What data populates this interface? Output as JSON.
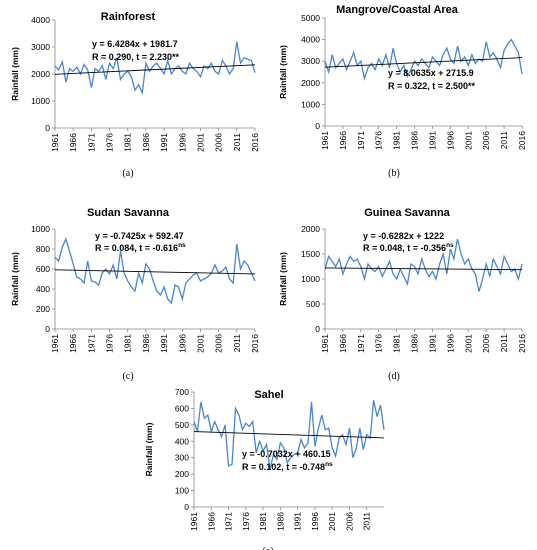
{
  "chart_data": [
    {
      "id": "a",
      "type": "line",
      "title": "Rainforest",
      "panel_label": "(a)",
      "ylabel": "Rainfall (mm)",
      "xlabel": "",
      "ylim": [
        0,
        4000
      ],
      "yticks": [
        "0",
        "1000",
        "2000",
        "3000",
        "4000"
      ],
      "xlim": [
        1961,
        2016
      ],
      "xticks": [
        "1961",
        "1966",
        "1971",
        "1976",
        "1981",
        "1986",
        "1991",
        "1996",
        "2001",
        "2006",
        "2011",
        "2016"
      ],
      "equation": "y = 6.4284x + 1981.7",
      "stats": "R = 0.290, t = 2.230**",
      "stats_sup": "",
      "trend": {
        "slope": 6.4284,
        "intercept": 1981.7
      },
      "x": [
        1961,
        1962,
        1963,
        1964,
        1965,
        1966,
        1967,
        1968,
        1969,
        1970,
        1971,
        1972,
        1973,
        1974,
        1975,
        1976,
        1977,
        1978,
        1979,
        1980,
        1981,
        1982,
        1983,
        1984,
        1985,
        1986,
        1987,
        1988,
        1989,
        1990,
        1991,
        1992,
        1993,
        1994,
        1995,
        1996,
        1997,
        1998,
        1999,
        2000,
        2001,
        2002,
        2003,
        2004,
        2005,
        2006,
        2007,
        2008,
        2009,
        2010,
        2011,
        2012,
        2013,
        2014,
        2015,
        2016
      ],
      "y": [
        2300,
        2150,
        2450,
        1700,
        2200,
        2100,
        2250,
        2000,
        2350,
        2150,
        1500,
        2200,
        2100,
        2300,
        1800,
        2400,
        2200,
        2600,
        1800,
        2000,
        2100,
        1900,
        1400,
        1600,
        1300,
        2400,
        2100,
        2300,
        2400,
        2200,
        2000,
        2500,
        2000,
        2200,
        2300,
        2100,
        2000,
        2400,
        2200,
        2100,
        1900,
        2300,
        2200,
        2400,
        2100,
        2000,
        2500,
        2300,
        2000,
        2200,
        3200,
        2400,
        2600,
        2550,
        2500,
        2050
      ]
    },
    {
      "id": "b",
      "type": "line",
      "title": "Mangrove/Coastal Area",
      "panel_label": "(b)",
      "ylabel": "Rainfall (mm)",
      "xlabel": "",
      "ylim": [
        0,
        5000
      ],
      "yticks": [
        "0",
        "1000",
        "2000",
        "3000",
        "4000",
        "5000"
      ],
      "xlim": [
        1961,
        2016
      ],
      "xticks": [
        "1961",
        "1966",
        "1971",
        "1976",
        "1981",
        "1986",
        "1991",
        "1996",
        "2001",
        "2006",
        "2011",
        "2016"
      ],
      "equation": "y = 8.0635x + 2715.9",
      "stats": "R = 0.322, t = 2.500**",
      "stats_sup": "",
      "trend": {
        "slope": 8.0635,
        "intercept": 2715.9
      },
      "x": [
        1961,
        1962,
        1963,
        1964,
        1965,
        1966,
        1967,
        1968,
        1969,
        1970,
        1971,
        1972,
        1973,
        1974,
        1975,
        1976,
        1977,
        1978,
        1979,
        1980,
        1981,
        1982,
        1983,
        1984,
        1985,
        1986,
        1987,
        1988,
        1989,
        1990,
        1991,
        1992,
        1993,
        1994,
        1995,
        1996,
        1997,
        1998,
        1999,
        2000,
        2001,
        2002,
        2003,
        2004,
        2005,
        2006,
        2007,
        2008,
        2009,
        2010,
        2011,
        2012,
        2013,
        2014,
        2015,
        2016
      ],
      "y": [
        3000,
        2500,
        3300,
        2700,
        2900,
        3100,
        2600,
        3000,
        3400,
        2800,
        3000,
        2200,
        2700,
        2900,
        2600,
        3100,
        2800,
        3300,
        2700,
        3600,
        2900,
        2500,
        2800,
        2300,
        2600,
        3000,
        2800,
        3100,
        2900,
        2700,
        3200,
        3000,
        2800,
        3300,
        3600,
        3100,
        2900,
        3700,
        3000,
        3200,
        2800,
        3300,
        2900,
        3100,
        3000,
        3900,
        3200,
        3400,
        3100,
        2700,
        3500,
        3800,
        4000,
        3700,
        3400,
        2400
      ]
    },
    {
      "id": "c",
      "type": "line",
      "title": "Sudan Savanna",
      "panel_label": "(c)",
      "ylabel": "Rainfall (mm)",
      "xlabel": "",
      "ylim": [
        0,
        1000
      ],
      "yticks": [
        "0",
        "200",
        "400",
        "600",
        "800",
        "1000"
      ],
      "xlim": [
        1961,
        2016
      ],
      "xticks": [
        "1961",
        "1966",
        "1971",
        "1976",
        "1981",
        "1986",
        "1991",
        "1996",
        "2001",
        "2006",
        "2011",
        "2016"
      ],
      "equation": "y = -0.7425x + 592.47",
      "stats": "R = 0.084, t = -0.616",
      "stats_sup": "ns",
      "trend": {
        "slope": -0.7425,
        "intercept": 592.47
      },
      "x": [
        1961,
        1962,
        1963,
        1964,
        1965,
        1966,
        1967,
        1968,
        1969,
        1970,
        1971,
        1972,
        1973,
        1974,
        1975,
        1976,
        1977,
        1978,
        1979,
        1980,
        1981,
        1982,
        1983,
        1984,
        1985,
        1986,
        1987,
        1988,
        1989,
        1990,
        1991,
        1992,
        1993,
        1994,
        1995,
        1996,
        1997,
        1998,
        1999,
        2000,
        2001,
        2002,
        2003,
        2004,
        2005,
        2006,
        2007,
        2008,
        2009,
        2010,
        2011,
        2012,
        2013,
        2014,
        2015,
        2016
      ],
      "y": [
        720,
        680,
        820,
        900,
        780,
        650,
        520,
        500,
        460,
        680,
        480,
        470,
        440,
        560,
        600,
        550,
        640,
        500,
        780,
        560,
        480,
        420,
        380,
        560,
        460,
        650,
        600,
        480,
        380,
        340,
        420,
        300,
        260,
        440,
        420,
        300,
        460,
        500,
        540,
        560,
        480,
        500,
        520,
        560,
        640,
        560,
        580,
        620,
        500,
        460,
        850,
        600,
        680,
        640,
        560,
        480
      ]
    },
    {
      "id": "d",
      "type": "line",
      "title": "Guinea Savanna",
      "panel_label": "(d)",
      "ylabel": "Rainfall (mm)",
      "xlabel": "",
      "ylim": [
        0,
        2000
      ],
      "yticks": [
        "0",
        "500",
        "1000",
        "1500",
        "2000"
      ],
      "xlim": [
        1961,
        2016
      ],
      "xticks": [
        "1961",
        "1966",
        "1971",
        "1976",
        "1981",
        "1986",
        "1991",
        "1996",
        "2001",
        "2006",
        "2011",
        "2016"
      ],
      "equation": "y = -0.6282x + 1222",
      "stats": "R = 0.048, t = -0.356",
      "stats_sup": "ns",
      "trend": {
        "slope": -0.6282,
        "intercept": 1222
      },
      "x": [
        1961,
        1962,
        1963,
        1964,
        1965,
        1966,
        1967,
        1968,
        1969,
        1970,
        1971,
        1972,
        1973,
        1974,
        1975,
        1976,
        1977,
        1978,
        1979,
        1980,
        1981,
        1982,
        1983,
        1984,
        1985,
        1986,
        1987,
        1988,
        1989,
        1990,
        1991,
        1992,
        1993,
        1994,
        1995,
        1996,
        1997,
        1998,
        1999,
        2000,
        2001,
        2002,
        2003,
        2004,
        2005,
        2006,
        2007,
        2008,
        2009,
        2010,
        2011,
        2012,
        2013,
        2014,
        2015,
        2016
      ],
      "y": [
        1200,
        1450,
        1350,
        1250,
        1400,
        1100,
        1300,
        1450,
        1350,
        1400,
        1250,
        1000,
        1300,
        1200,
        1150,
        1250,
        1050,
        1200,
        1350,
        1100,
        1000,
        1200,
        1050,
        900,
        1300,
        1250,
        1100,
        1400,
        1200,
        1050,
        1150,
        1000,
        1300,
        1500,
        1100,
        1600,
        1400,
        1800,
        1500,
        1300,
        1400,
        1200,
        1100,
        750,
        1000,
        1300,
        1050,
        1400,
        1250,
        1100,
        1450,
        1300,
        1150,
        1200,
        1000,
        1300
      ]
    },
    {
      "id": "e",
      "type": "line",
      "title": "Sahel",
      "panel_label": "(e)",
      "ylabel": "Rainfall (mm)",
      "xlabel": "",
      "ylim": [
        0,
        700
      ],
      "yticks": [
        "0",
        "100",
        "200",
        "300",
        "400",
        "500",
        "600",
        "700"
      ],
      "xlim": [
        1961,
        2016
      ],
      "xticks": [
        "1961",
        "1966",
        "1971",
        "1976",
        "1981",
        "1986",
        "1991",
        "1996",
        "2001",
        "2006",
        "2011"
      ],
      "equation": "y = -0.7032x + 460.15",
      "stats": "R = 0.102, t = -0.748",
      "stats_sup": "ns",
      "trend": {
        "slope": -0.7032,
        "intercept": 460.15
      },
      "x": [
        1961,
        1962,
        1963,
        1964,
        1965,
        1966,
        1967,
        1968,
        1969,
        1970,
        1971,
        1972,
        1973,
        1974,
        1975,
        1976,
        1977,
        1978,
        1979,
        1980,
        1981,
        1982,
        1983,
        1984,
        1985,
        1986,
        1987,
        1988,
        1989,
        1990,
        1991,
        1992,
        1993,
        1994,
        1995,
        1996,
        1997,
        1998,
        1999,
        2000,
        2001,
        2002,
        2003,
        2004,
        2005,
        2006,
        2007,
        2008,
        2009,
        2010,
        2011,
        2012,
        2013,
        2014,
        2015,
        2016
      ],
      "y": [
        520,
        460,
        640,
        540,
        560,
        460,
        520,
        470,
        430,
        500,
        250,
        260,
        600,
        560,
        470,
        510,
        490,
        520,
        330,
        400,
        340,
        380,
        230,
        320,
        290,
        390,
        360,
        270,
        300,
        320,
        330,
        410,
        360,
        390,
        640,
        370,
        480,
        560,
        470,
        480,
        360,
        310,
        420,
        440,
        380,
        480,
        300,
        360,
        480,
        350,
        440,
        420,
        650,
        550,
        620,
        470
      ]
    }
  ]
}
